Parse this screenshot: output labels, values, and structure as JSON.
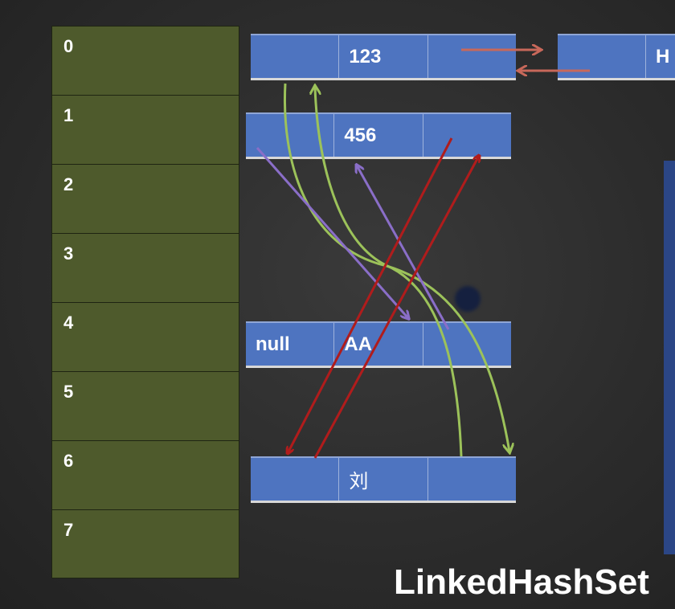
{
  "title": "LinkedHashSet",
  "table": {
    "slots": [
      "0",
      "1",
      "2",
      "3",
      "4",
      "5",
      "6",
      "7"
    ]
  },
  "nodes": {
    "n0": {
      "cells": [
        "",
        "123",
        ""
      ]
    },
    "n1": {
      "cells": [
        "",
        "456",
        ""
      ]
    },
    "n4": {
      "cells": [
        "null",
        "AA",
        ""
      ]
    },
    "n6": {
      "cells": [
        "",
        "刘",
        ""
      ]
    },
    "nH": {
      "cells": [
        "",
        "H"
      ]
    }
  },
  "colors": {
    "table_slot": "#4e5a2c",
    "node_fill": "#4e74c0",
    "arrow_red": "#b01c1c",
    "arrow_green": "#9cc25a",
    "arrow_purple": "#8a6ec8",
    "arrow_salmon": "#c8685a"
  }
}
